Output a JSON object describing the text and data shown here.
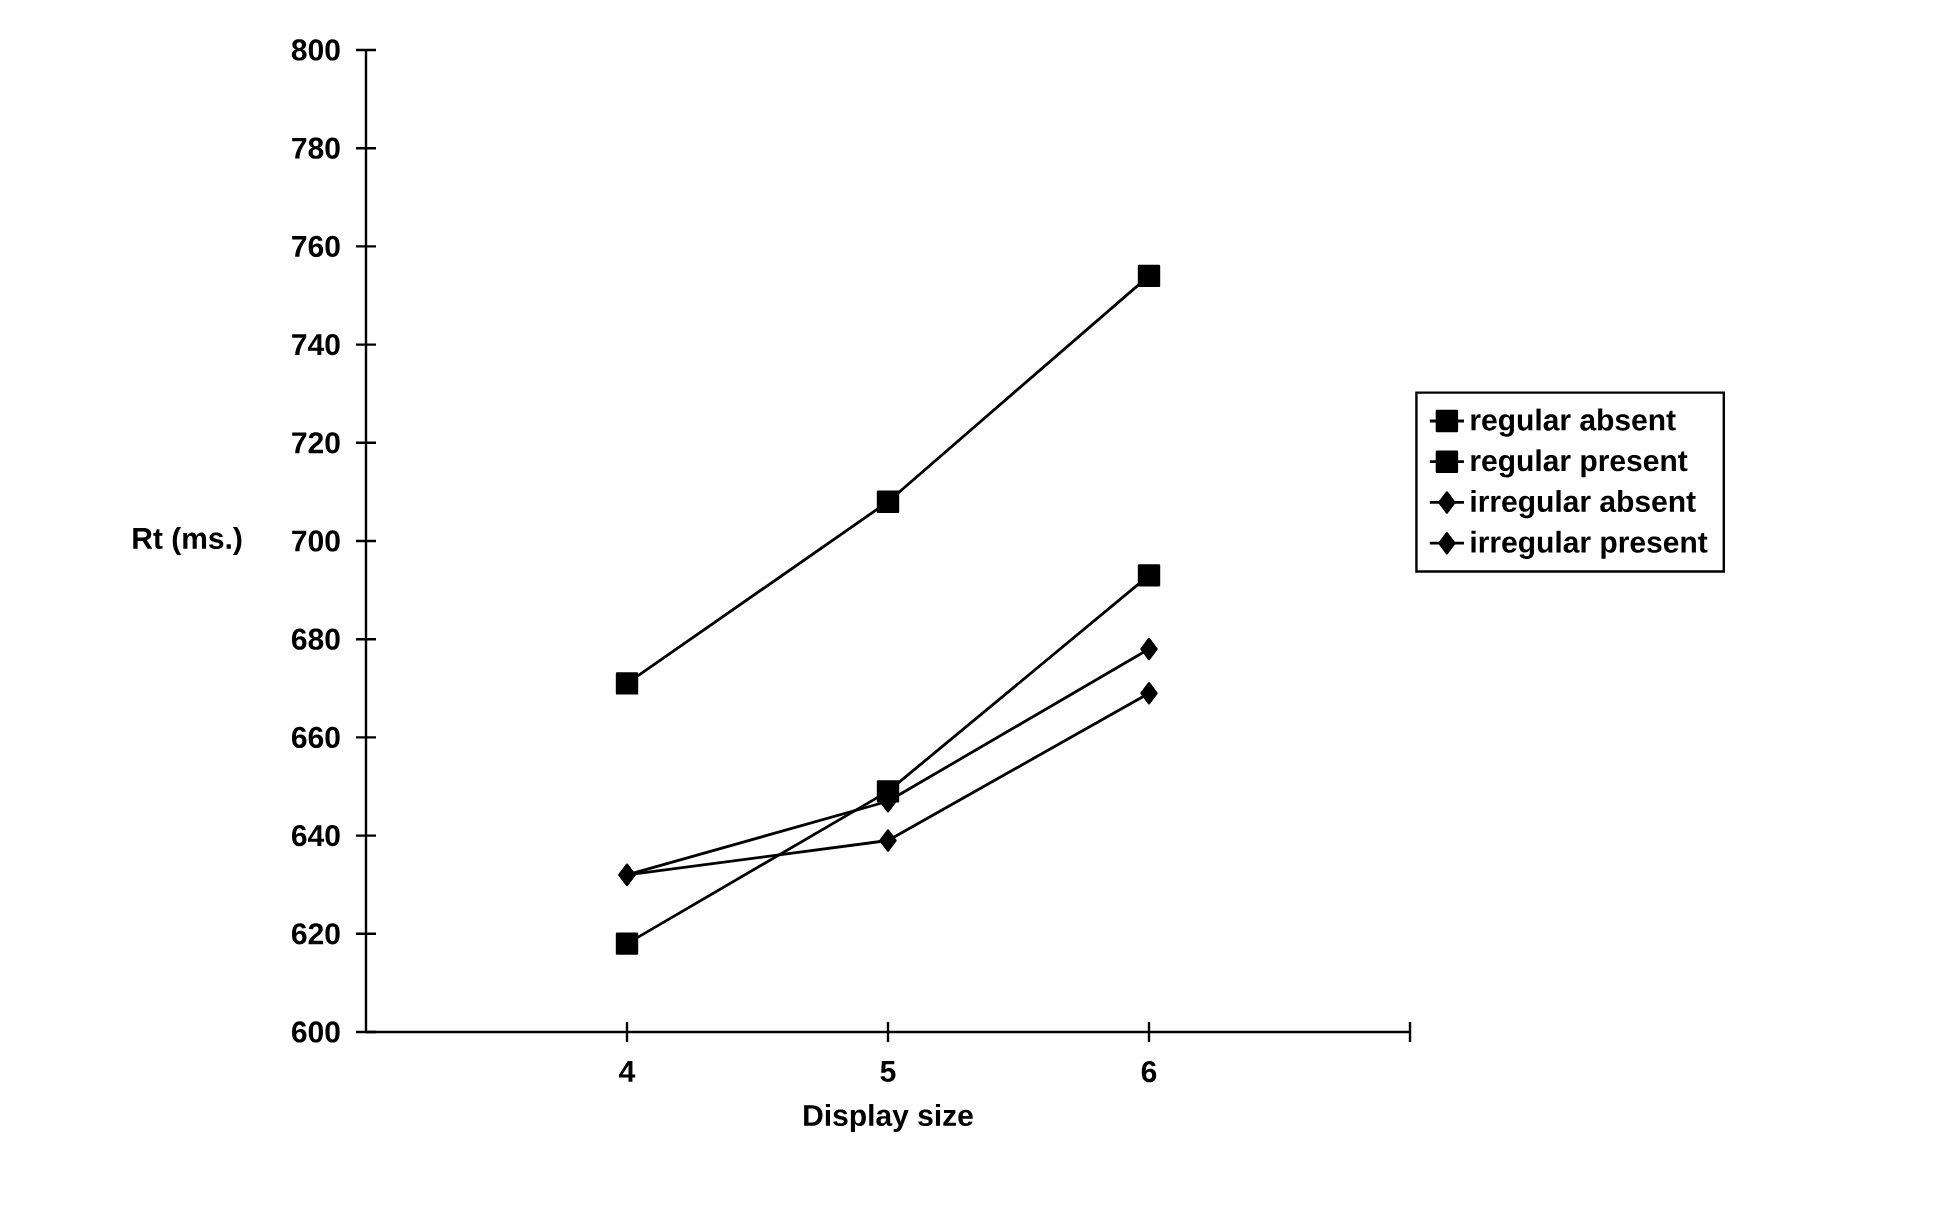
{
  "chart_data": {
    "type": "line",
    "xlabel": "Display size",
    "ylabel": "Rt (ms.)",
    "x": [
      4,
      5,
      6
    ],
    "xlim": [
      3,
      7
    ],
    "xticks": [
      4,
      5,
      6,
      {
        "value": 7,
        "label": null
      }
    ],
    "ylim": [
      600,
      800
    ],
    "yticks": [
      600,
      620,
      640,
      660,
      680,
      700,
      720,
      740,
      760,
      780,
      800
    ],
    "legend": "right",
    "grid": false,
    "line_style": "solid",
    "series": [
      {
        "name": "regular absent",
        "color": "#000000",
        "marker": "square",
        "values": [
          618,
          649,
          693
        ]
      },
      {
        "name": "regular present",
        "color": "#000000",
        "marker": "square",
        "values": [
          671,
          708,
          754
        ]
      },
      {
        "name": "irregular absent",
        "color": "#000000",
        "marker": "diamond",
        "values": [
          632,
          647,
          678
        ]
      },
      {
        "name": "irregular present",
        "color": "#000000",
        "marker": "diamond",
        "values": [
          632,
          639,
          669
        ]
      }
    ]
  }
}
